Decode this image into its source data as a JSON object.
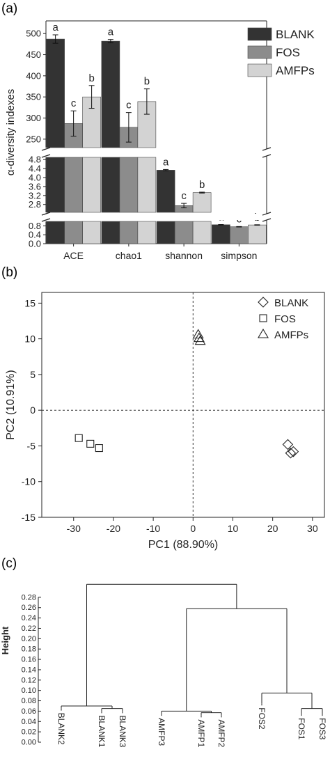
{
  "panels": {
    "a": "(a)",
    "b": "(b)",
    "c": "(c)"
  },
  "colors": {
    "BLANK": "#333333",
    "FOS": "#8c8c8c",
    "AMFPs": "#d3d3d3",
    "axis": "#222222"
  },
  "chart_data": [
    {
      "type": "bar",
      "panel": "(a)",
      "title": "",
      "xlabel": "",
      "ylabel": "α-diversity indexes",
      "categories": [
        "ACE",
        "chao1",
        "shannon",
        "simpson"
      ],
      "series": [
        {
          "name": "BLANK",
          "values": [
            487,
            482,
            4.33,
            0.85
          ],
          "errors": [
            10,
            4,
            0.03,
            0.01
          ],
          "letters": [
            "a",
            "a",
            "a",
            "a"
          ]
        },
        {
          "name": "FOS",
          "values": [
            287,
            278,
            2.75,
            0.76
          ],
          "errors": [
            30,
            35,
            0.1,
            0.01
          ],
          "letters": [
            "c",
            "c",
            "c",
            "c"
          ]
        },
        {
          "name": "AMFPs",
          "values": [
            350,
            339,
            3.33,
            0.84
          ],
          "errors": [
            27,
            30,
            0.02,
            0.01
          ],
          "letters": [
            "b",
            "b",
            "b",
            "b"
          ]
        }
      ],
      "broken_axis_segments": [
        {
          "range": [
            230,
            530
          ],
          "ticks": [
            "250",
            "300",
            "350",
            "400",
            "450",
            "500"
          ]
        },
        {
          "range": [
            2.45,
            4.9
          ],
          "ticks": [
            "2.8",
            "3.2",
            "3.6",
            "4.0",
            "4.4",
            "4.8"
          ]
        },
        {
          "range": [
            0,
            1.0
          ],
          "ticks": [
            "0.0",
            "0.4",
            "0.8"
          ]
        }
      ],
      "legend": {
        "position": "top-right",
        "entries": [
          "BLANK",
          "FOS",
          "AMFPs"
        ]
      }
    },
    {
      "type": "scatter",
      "panel": "(b)",
      "title": "",
      "xlabel": "PC1 (88.90%)",
      "ylabel": "PC2 (10.91%)",
      "xlim": [
        -38,
        33
      ],
      "ylim": [
        -15,
        16.5
      ],
      "xticks": [
        "-30",
        "-20",
        "-10",
        "0",
        "10",
        "20",
        "30"
      ],
      "yticks": [
        "-15",
        "-10",
        "-5",
        "0",
        "5",
        "10",
        "15"
      ],
      "reference_lines": {
        "x": 0,
        "y": 0,
        "style": "dashed"
      },
      "series": [
        {
          "name": "BLANK",
          "marker": "diamond",
          "points": [
            [
              23.8,
              -4.8
            ],
            [
              24.5,
              -6.0
            ],
            [
              25.2,
              -5.8
            ]
          ]
        },
        {
          "name": "FOS",
          "marker": "square",
          "points": [
            [
              -28.7,
              -3.9
            ],
            [
              -25.8,
              -4.7
            ],
            [
              -23.6,
              -5.3
            ]
          ]
        },
        {
          "name": "AMFPs",
          "marker": "triangle",
          "points": [
            [
              1.3,
              10.6
            ],
            [
              1.5,
              10.1
            ],
            [
              1.8,
              9.7
            ]
          ]
        }
      ],
      "legend": {
        "position": "top-right",
        "entries": [
          "BLANK",
          "FOS",
          "AMFPs"
        ]
      }
    },
    {
      "type": "dendrogram",
      "panel": "(c)",
      "title": "",
      "ylabel": "Height",
      "ylim": [
        0,
        0.3
      ],
      "yticks": [
        "0.00",
        "0.02",
        "0.04",
        "0.06",
        "0.08",
        "0.10",
        "0.12",
        "0.14",
        "0.16",
        "0.18",
        "0.20",
        "0.22",
        "0.24",
        "0.26",
        "0.28"
      ],
      "leaves": [
        "BLANK2",
        "BLANK1",
        "BLANK3",
        "AMFP3",
        "AMFP1",
        "AMFP2",
        "FOS2",
        "FOS1",
        "FOS3"
      ],
      "merges": [
        {
          "left": 1,
          "right": 2,
          "height": 0.065
        },
        {
          "left": 0,
          "right": 1,
          "height": 0.07
        },
        {
          "left": 4,
          "right": 5,
          "height": 0.057
        },
        {
          "left": 3,
          "right": 4,
          "height": 0.06
        },
        {
          "left": 7,
          "right": 8,
          "height": 0.065
        },
        {
          "left": 6,
          "right": 7,
          "height": 0.095
        },
        {
          "left": 3,
          "right": 6,
          "height": 0.258
        },
        {
          "left": 0,
          "right": 3,
          "height": 0.305
        }
      ]
    }
  ]
}
